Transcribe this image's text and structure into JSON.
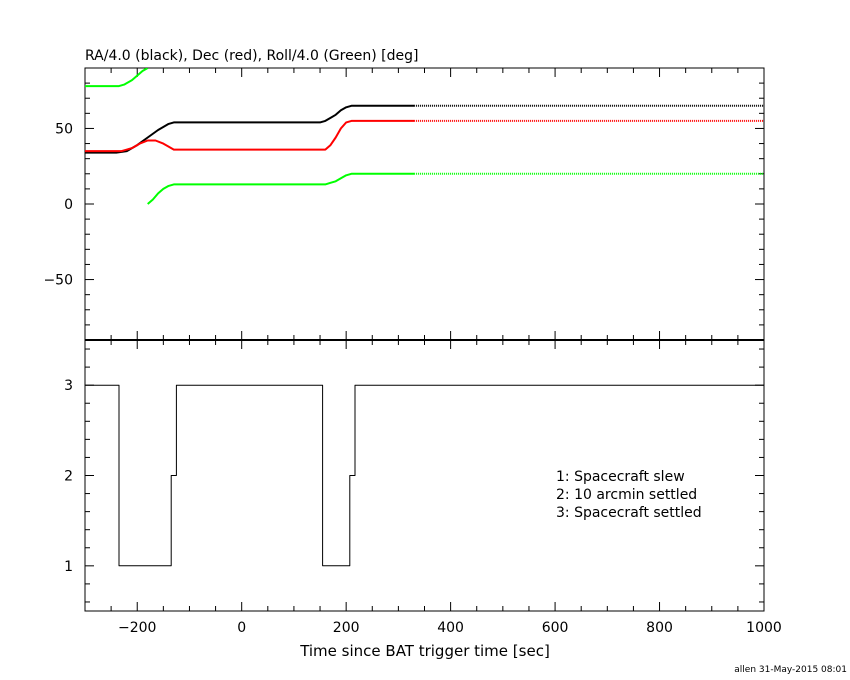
{
  "chart_data": [
    {
      "type": "line",
      "title": "RA/4.0 (black), Dec (red), Roll/4.0 (Green) [deg]",
      "xlim": [
        -300,
        1000
      ],
      "ylim": [
        -90,
        90
      ],
      "yticks": [
        -50,
        0,
        50
      ],
      "ytick_labels": [
        "−50",
        "0",
        "50"
      ],
      "grid": false,
      "series": [
        {
          "color": "#000000",
          "x": [
            -300,
            -240,
            -220,
            -200,
            -180,
            -160,
            -140,
            -130,
            -100,
            0,
            100,
            150,
            160,
            170,
            180,
            190,
            200,
            210,
            220,
            250,
            300,
            330
          ],
          "y": [
            34,
            34,
            35,
            39,
            44,
            49,
            53,
            54,
            54,
            54,
            54,
            54,
            55,
            57,
            59,
            62,
            64,
            65,
            65,
            65,
            65,
            65
          ],
          "dotted": {
            "x": [
              330,
              1000
            ],
            "y": [
              65,
              65
            ]
          }
        },
        {
          "color": "#ff0000",
          "x": [
            -300,
            -230,
            -210,
            -195,
            -180,
            -165,
            -150,
            -140,
            -130,
            -100,
            0,
            100,
            160,
            170,
            180,
            190,
            200,
            210,
            220,
            250,
            300,
            330
          ],
          "y": [
            35,
            35,
            37,
            40,
            42,
            42,
            40,
            38,
            36,
            36,
            36,
            36,
            36,
            39,
            44,
            50,
            54,
            55,
            55,
            55,
            55,
            55
          ],
          "dotted": {
            "x": [
              330,
              1000
            ],
            "y": [
              55,
              55
            ]
          }
        },
        {
          "color": "#00ff00",
          "segments": [
            {
              "x": [
                -300,
                -235,
                -225,
                -210,
                -200,
                -190,
                -180
              ],
              "y": [
                78,
                78,
                79,
                82,
                85,
                88,
                90
              ]
            },
            {
              "x": [
                -180,
                -170,
                -160,
                -150,
                -140,
                -130,
                -100,
                0,
                100,
                160,
                170,
                180,
                190,
                200,
                210,
                220,
                250,
                300,
                330
              ],
              "y": [
                0,
                3,
                7,
                10,
                12,
                13,
                13,
                13,
                13,
                13,
                14,
                15,
                17,
                19,
                20,
                20,
                20,
                20,
                20
              ]
            }
          ],
          "dotted": {
            "x": [
              330,
              1000
            ],
            "y": [
              20,
              20
            ]
          }
        }
      ]
    },
    {
      "type": "line",
      "step": true,
      "xlabel": "Time since BAT trigger time [sec]",
      "xlim": [
        -300,
        1000
      ],
      "ylim": [
        0.5,
        3.5
      ],
      "xticks": [
        -200,
        0,
        200,
        400,
        600,
        800,
        1000
      ],
      "xtick_labels": [
        "−200",
        "0",
        "200",
        "400",
        "600",
        "800",
        "1000"
      ],
      "yticks": [
        1,
        2,
        3
      ],
      "ytick_labels": [
        "1",
        "2",
        "3"
      ],
      "grid": false,
      "series": [
        {
          "color": "#000000",
          "x": [
            -300,
            -235,
            -235,
            -135,
            -135,
            -125,
            -125,
            155,
            155,
            207,
            207,
            217,
            217,
            1000
          ],
          "y": [
            3,
            3,
            1,
            1,
            2,
            2,
            3,
            3,
            1,
            1,
            2,
            2,
            3,
            3
          ]
        }
      ],
      "annotations": [
        "1: Spacecraft slew",
        "2: 10 arcmin settled",
        "3: Spacecraft settled"
      ]
    }
  ],
  "footer": "allen 31-May-2015 08:01"
}
